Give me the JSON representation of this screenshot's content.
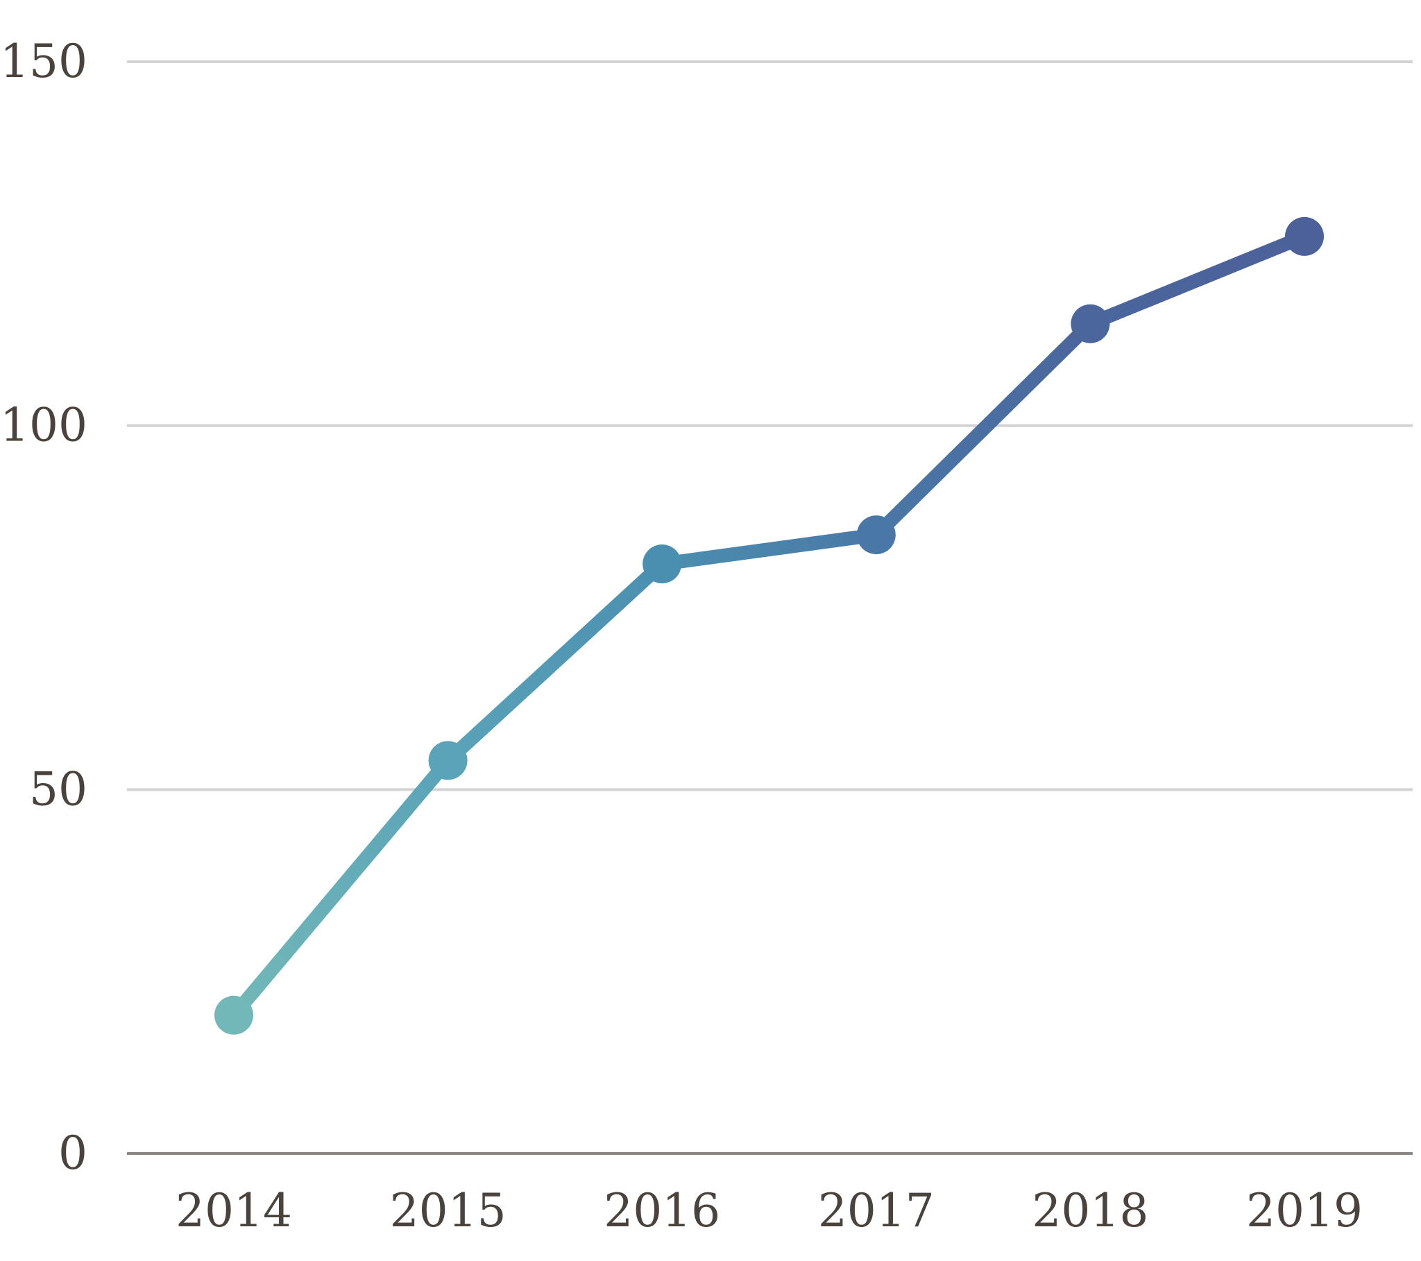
{
  "chart_data": {
    "type": "line",
    "title": "",
    "xlabel": "",
    "ylabel": "",
    "categories": [
      "2014",
      "2015",
      "2016",
      "2017",
      "2018",
      "2019"
    ],
    "values": [
      19,
      54,
      81,
      85,
      114,
      126
    ],
    "ylim": [
      0,
      150
    ],
    "yticks": [
      0,
      50,
      100,
      150
    ],
    "grid": true,
    "legend": "none",
    "gradient_colors": [
      "#72b8b8",
      "#5aa3b8",
      "#4b8fb0",
      "#4a78a6",
      "#4a669c",
      "#4c6199"
    ]
  }
}
